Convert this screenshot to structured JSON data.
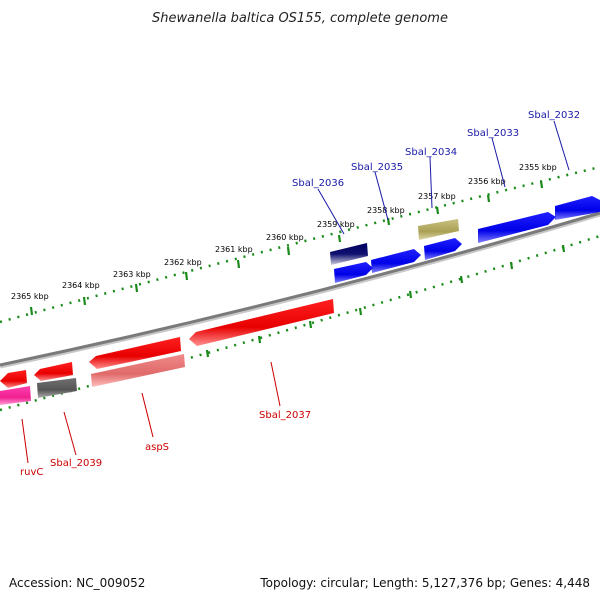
{
  "title": "Shewanella baltica OS155, complete genome",
  "footer": {
    "accession": "Accession: NC_009052",
    "summary": "Topology: circular; Length: 5,127,376 bp; Genes: 4,448"
  },
  "colors": {
    "forward_strand": "#0000ee",
    "reverse_strand": "#ee0000",
    "forward_label": "#1a1aa8",
    "reverse_label": "#cc0000",
    "backbone": "#7a7a7a",
    "tick": "#1a8a1a"
  },
  "tick_labels": [
    "2355 kbp",
    "2356 kbp",
    "2357 kbp",
    "2358 kbp",
    "2359 kbp",
    "2360 kbp",
    "2361 kbp",
    "2362 kbp",
    "2363 kbp",
    "2364 kbp",
    "2365 kbp"
  ],
  "gene_labels": {
    "top": [
      "Sbal_2032",
      "Sbal_2033",
      "Sbal_2034",
      "Sbal_2035",
      "Sbal_2036"
    ],
    "bottom": [
      "Sbal_2037",
      "aspS",
      "Sbal_2039",
      "ruvC"
    ]
  }
}
